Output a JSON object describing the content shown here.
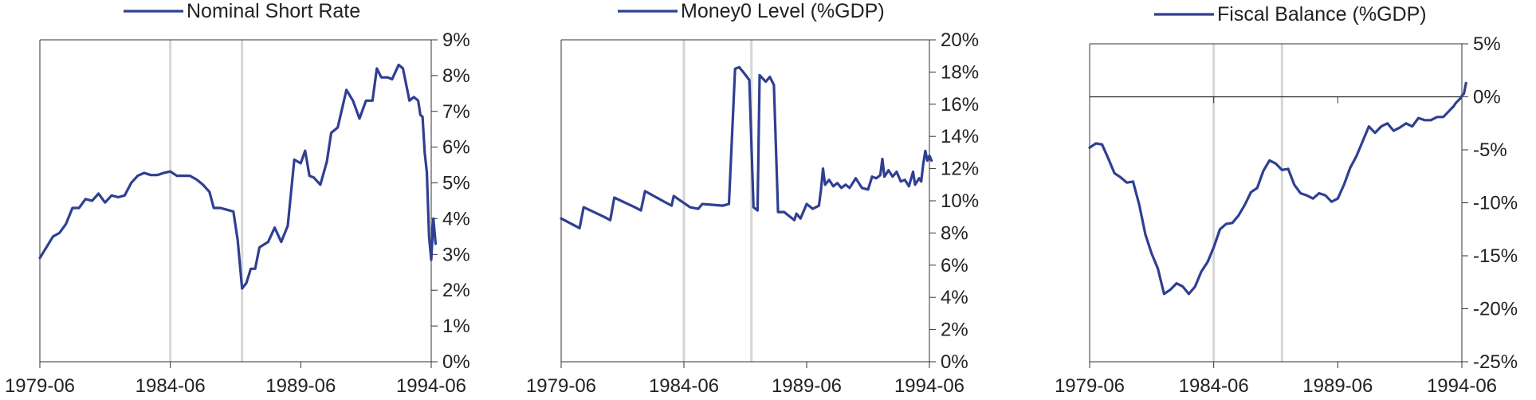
{
  "chart_data": [
    {
      "type": "line",
      "legend": "Nominal Short Rate",
      "legend_position": "top",
      "y_format": "percent",
      "ylim": [
        0,
        9
      ],
      "y_ticks": [
        "0%",
        "1%",
        "2%",
        "3%",
        "4%",
        "5%",
        "6%",
        "7%",
        "8%",
        "9%"
      ],
      "x_range": [
        "1979-06",
        "1994-06"
      ],
      "x_ticks": [
        "1979-06",
        "1984-06",
        "1989-06",
        "1994-06"
      ],
      "shaded_dates": [
        "1984-06",
        "1987-03"
      ],
      "series": [
        {
          "name": "Nominal Short Rate",
          "points": [
            [
              "1979-06",
              2.9
            ],
            [
              "1979-09",
              3.2
            ],
            [
              "1979-12",
              3.5
            ],
            [
              "1980-03",
              3.6
            ],
            [
              "1980-06",
              3.85
            ],
            [
              "1980-09",
              4.3
            ],
            [
              "1980-12",
              4.3
            ],
            [
              "1981-03",
              4.55
            ],
            [
              "1981-06",
              4.5
            ],
            [
              "1981-09",
              4.7
            ],
            [
              "1981-12",
              4.45
            ],
            [
              "1982-03",
              4.65
            ],
            [
              "1982-06",
              4.6
            ],
            [
              "1982-09",
              4.65
            ],
            [
              "1982-12",
              5.0
            ],
            [
              "1983-03",
              5.2
            ],
            [
              "1983-06",
              5.28
            ],
            [
              "1983-09",
              5.22
            ],
            [
              "1983-12",
              5.22
            ],
            [
              "1984-03",
              5.28
            ],
            [
              "1984-06",
              5.32
            ],
            [
              "1984-09",
              5.2
            ],
            [
              "1984-12",
              5.2
            ],
            [
              "1985-03",
              5.2
            ],
            [
              "1985-06",
              5.1
            ],
            [
              "1985-09",
              4.95
            ],
            [
              "1985-12",
              4.75
            ],
            [
              "1986-02",
              4.3
            ],
            [
              "1986-05",
              4.3
            ],
            [
              "1986-08",
              4.25
            ],
            [
              "1986-11",
              4.2
            ],
            [
              "1987-01",
              3.4
            ],
            [
              "1987-03",
              2.05
            ],
            [
              "1987-05",
              2.2
            ],
            [
              "1987-07",
              2.6
            ],
            [
              "1987-09",
              2.6
            ],
            [
              "1987-11",
              3.2
            ],
            [
              "1988-03",
              3.35
            ],
            [
              "1988-06",
              3.75
            ],
            [
              "1988-09",
              3.35
            ],
            [
              "1988-12",
              3.8
            ],
            [
              "1989-03",
              5.65
            ],
            [
              "1989-06",
              5.55
            ],
            [
              "1989-08",
              5.9
            ],
            [
              "1989-10",
              5.2
            ],
            [
              "1989-12",
              5.15
            ],
            [
              "1990-03",
              4.95
            ],
            [
              "1990-06",
              5.6
            ],
            [
              "1990-08",
              6.4
            ],
            [
              "1990-11",
              6.55
            ],
            [
              "1991-03",
              7.6
            ],
            [
              "1991-06",
              7.3
            ],
            [
              "1991-09",
              6.8
            ],
            [
              "1991-12",
              7.3
            ],
            [
              "1992-03",
              7.3
            ],
            [
              "1992-05",
              8.2
            ],
            [
              "1992-07",
              7.95
            ],
            [
              "1992-10",
              7.95
            ],
            [
              "1992-12",
              7.9
            ],
            [
              "1993-03",
              8.3
            ],
            [
              "1993-05",
              8.2
            ],
            [
              "1993-08",
              7.3
            ],
            [
              "1993-10",
              7.4
            ],
            [
              "1993-12",
              7.3
            ],
            [
              "1994-01",
              6.9
            ],
            [
              "1994-02",
              6.85
            ],
            [
              "1994-03",
              5.85
            ],
            [
              "1994-04",
              5.3
            ],
            [
              "1994-05",
              3.5
            ],
            [
              "1994-06",
              2.85
            ],
            [
              "1994-07",
              4.0
            ],
            [
              "1994-08",
              3.3
            ]
          ]
        }
      ]
    },
    {
      "type": "line",
      "legend": "Money0 Level (%GDP)",
      "legend_position": "top",
      "y_format": "percent",
      "ylim": [
        0,
        20
      ],
      "y_ticks": [
        "0%",
        "2%",
        "4%",
        "6%",
        "8%",
        "10%",
        "12%",
        "14%",
        "16%",
        "18%",
        "20%"
      ],
      "x_range": [
        "1979-06",
        "1994-06"
      ],
      "x_ticks": [
        "1979-06",
        "1984-06",
        "1989-06",
        "1994-06"
      ],
      "shaded_dates": [
        "1984-06",
        "1987-03"
      ],
      "series": [
        {
          "name": "Money0 Level (%GDP)",
          "points": [
            [
              "1979-06",
              8.9
            ],
            [
              "1980-03",
              8.3
            ],
            [
              "1980-05",
              9.6
            ],
            [
              "1981-03",
              9.0
            ],
            [
              "1981-06",
              8.8
            ],
            [
              "1981-08",
              10.2
            ],
            [
              "1982-06",
              9.6
            ],
            [
              "1982-09",
              9.4
            ],
            [
              "1982-11",
              10.6
            ],
            [
              "1983-09",
              9.9
            ],
            [
              "1983-12",
              9.7
            ],
            [
              "1984-01",
              10.3
            ],
            [
              "1984-09",
              9.6
            ],
            [
              "1985-01",
              9.5
            ],
            [
              "1985-03",
              9.8
            ],
            [
              "1986-01",
              9.7
            ],
            [
              "1986-04",
              9.8
            ],
            [
              "1986-07",
              18.2
            ],
            [
              "1986-09",
              18.3
            ],
            [
              "1986-11",
              18.0
            ],
            [
              "1987-02",
              17.5
            ],
            [
              "1987-04",
              9.6
            ],
            [
              "1987-06",
              9.4
            ],
            [
              "1987-07",
              17.8
            ],
            [
              "1987-10",
              17.4
            ],
            [
              "1987-12",
              17.7
            ],
            [
              "1988-02",
              17.2
            ],
            [
              "1988-04",
              9.3
            ],
            [
              "1988-07",
              9.3
            ],
            [
              "1988-09",
              9.1
            ],
            [
              "1988-12",
              8.8
            ],
            [
              "1989-01",
              9.2
            ],
            [
              "1989-03",
              8.9
            ],
            [
              "1989-06",
              9.8
            ],
            [
              "1989-09",
              9.5
            ],
            [
              "1989-12",
              9.7
            ],
            [
              "1990-01",
              10.7
            ],
            [
              "1990-02",
              12.0
            ],
            [
              "1990-03",
              11.0
            ],
            [
              "1990-05",
              11.3
            ],
            [
              "1990-07",
              10.9
            ],
            [
              "1990-09",
              11.1
            ],
            [
              "1990-11",
              10.8
            ],
            [
              "1991-01",
              11.0
            ],
            [
              "1991-03",
              10.8
            ],
            [
              "1991-06",
              11.4
            ],
            [
              "1991-09",
              10.8
            ],
            [
              "1991-12",
              10.7
            ],
            [
              "1992-02",
              11.5
            ],
            [
              "1992-04",
              11.4
            ],
            [
              "1992-06",
              11.6
            ],
            [
              "1992-07",
              12.6
            ],
            [
              "1992-08",
              11.5
            ],
            [
              "1992-10",
              11.9
            ],
            [
              "1992-12",
              11.5
            ],
            [
              "1993-02",
              11.8
            ],
            [
              "1993-04",
              11.2
            ],
            [
              "1993-06",
              11.3
            ],
            [
              "1993-08",
              10.9
            ],
            [
              "1993-10",
              11.8
            ],
            [
              "1993-11",
              11.0
            ],
            [
              "1994-01",
              11.4
            ],
            [
              "1994-02",
              11.2
            ],
            [
              "1994-03",
              12.3
            ],
            [
              "1994-04",
              13.1
            ],
            [
              "1994-05",
              12.5
            ],
            [
              "1994-06",
              12.8
            ],
            [
              "1994-07",
              12.5
            ]
          ]
        }
      ]
    },
    {
      "type": "line",
      "legend": "Fiscal Balance (%GDP)",
      "legend_position": "top",
      "y_format": "percent",
      "ylim": [
        -25,
        5
      ],
      "y_ticks": [
        "-25%",
        "-20%",
        "-15%",
        "-10%",
        "-5%",
        "0%",
        "5%"
      ],
      "x_range": [
        "1979-06",
        "1994-06"
      ],
      "x_ticks": [
        "1979-06",
        "1984-06",
        "1989-06",
        "1994-06"
      ],
      "shaded_dates": [
        "1984-06",
        "1987-03"
      ],
      "series": [
        {
          "name": "Fiscal Balance (%GDP)",
          "points": [
            [
              "1979-06",
              -4.8
            ],
            [
              "1979-09",
              -4.4
            ],
            [
              "1979-12",
              -4.5
            ],
            [
              "1980-03",
              -5.8
            ],
            [
              "1980-06",
              -7.2
            ],
            [
              "1980-09",
              -7.6
            ],
            [
              "1980-12",
              -8.1
            ],
            [
              "1981-03",
              -8.0
            ],
            [
              "1981-06",
              -10.2
            ],
            [
              "1981-09",
              -13.0
            ],
            [
              "1981-12",
              -14.8
            ],
            [
              "1982-03",
              -16.2
            ],
            [
              "1982-06",
              -18.6
            ],
            [
              "1982-09",
              -18.2
            ],
            [
              "1982-12",
              -17.6
            ],
            [
              "1983-03",
              -17.9
            ],
            [
              "1983-06",
              -18.6
            ],
            [
              "1983-09",
              -17.9
            ],
            [
              "1983-12",
              -16.5
            ],
            [
              "1984-03",
              -15.6
            ],
            [
              "1984-06",
              -14.2
            ],
            [
              "1984-09",
              -12.5
            ],
            [
              "1984-12",
              -12.0
            ],
            [
              "1985-03",
              -11.9
            ],
            [
              "1985-06",
              -11.2
            ],
            [
              "1985-09",
              -10.2
            ],
            [
              "1985-12",
              -9.0
            ],
            [
              "1986-03",
              -8.6
            ],
            [
              "1986-06",
              -7.0
            ],
            [
              "1986-09",
              -6.0
            ],
            [
              "1986-12",
              -6.3
            ],
            [
              "1987-03",
              -6.9
            ],
            [
              "1987-06",
              -6.8
            ],
            [
              "1987-09",
              -8.3
            ],
            [
              "1987-12",
              -9.1
            ],
            [
              "1988-03",
              -9.3
            ],
            [
              "1988-06",
              -9.6
            ],
            [
              "1988-09",
              -9.1
            ],
            [
              "1988-12",
              -9.3
            ],
            [
              "1989-03",
              -9.9
            ],
            [
              "1989-06",
              -9.6
            ],
            [
              "1989-09",
              -8.3
            ],
            [
              "1989-12",
              -6.7
            ],
            [
              "1990-03",
              -5.6
            ],
            [
              "1990-06",
              -4.2
            ],
            [
              "1990-09",
              -2.8
            ],
            [
              "1990-12",
              -3.4
            ],
            [
              "1991-03",
              -2.8
            ],
            [
              "1991-06",
              -2.5
            ],
            [
              "1991-09",
              -3.2
            ],
            [
              "1991-12",
              -2.9
            ],
            [
              "1992-03",
              -2.5
            ],
            [
              "1992-06",
              -2.8
            ],
            [
              "1992-09",
              -2.0
            ],
            [
              "1992-12",
              -2.2
            ],
            [
              "1993-03",
              -2.2
            ],
            [
              "1993-06",
              -1.9
            ],
            [
              "1993-09",
              -1.9
            ],
            [
              "1993-12",
              -1.3
            ],
            [
              "1994-01",
              -1.1
            ],
            [
              "1994-02",
              -0.9
            ],
            [
              "1994-03",
              -0.6
            ],
            [
              "1994-04",
              -0.4
            ],
            [
              "1994-05",
              -0.2
            ],
            [
              "1994-06",
              0.1
            ],
            [
              "1994-07",
              0.3
            ],
            [
              "1994-08",
              1.3
            ]
          ]
        }
      ]
    }
  ]
}
